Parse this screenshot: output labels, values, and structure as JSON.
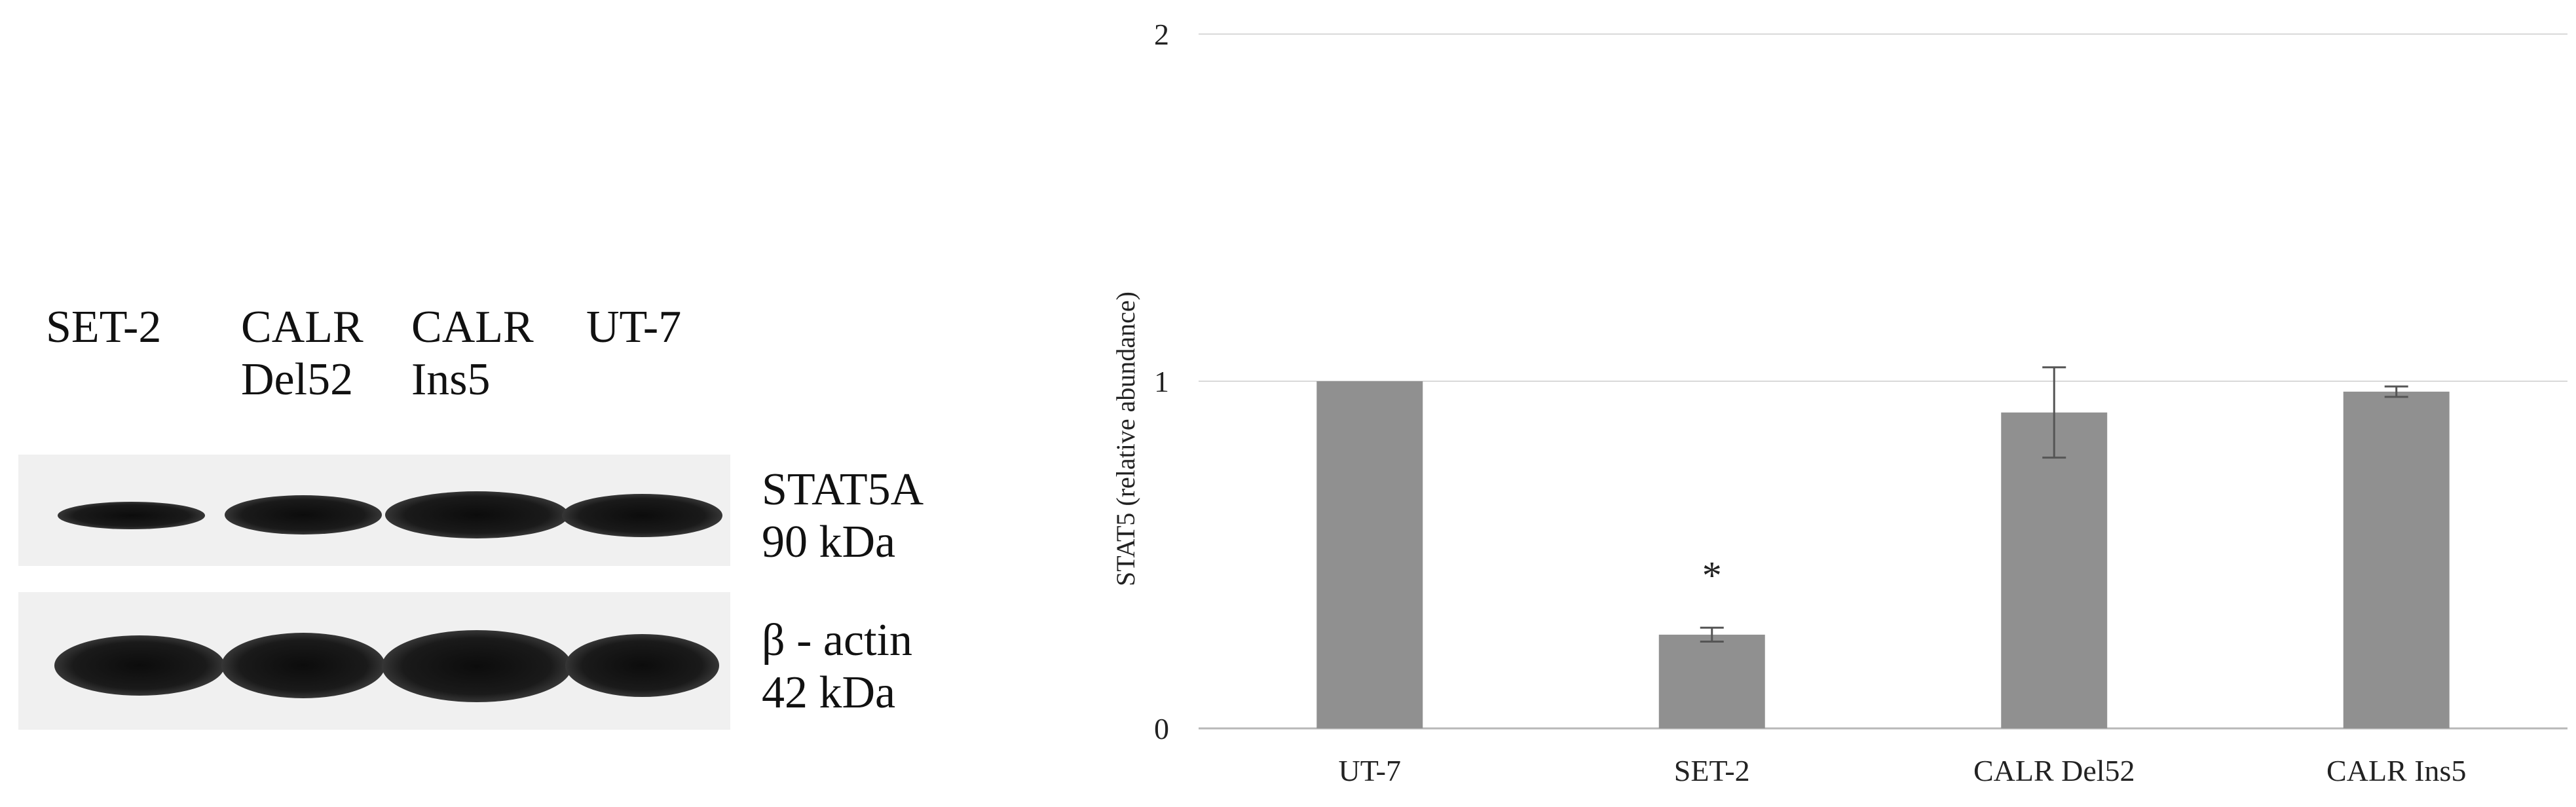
{
  "blot": {
    "lanes": [
      {
        "line1": "SET-2",
        "line2": ""
      },
      {
        "line1": "CALR",
        "line2": "Del52"
      },
      {
        "line1": "CALR",
        "line2": "Ins5"
      },
      {
        "line1": "UT-7",
        "line2": ""
      }
    ],
    "rows": [
      {
        "name": "STAT5A",
        "size": "90 kDa"
      },
      {
        "name": "β - actin",
        "size": "42 kDa"
      }
    ]
  },
  "chart_data": {
    "type": "bar",
    "categories": [
      "UT-7",
      "SET-2",
      "CALR Del52",
      "CALR Ins5"
    ],
    "values": [
      1.0,
      0.27,
      0.91,
      0.97
    ],
    "errors": [
      0.0,
      0.02,
      0.13,
      0.015
    ],
    "annotations": [
      "",
      "*",
      "",
      ""
    ],
    "ylabel": "STAT5 (relative abundance)",
    "xlabel": "",
    "ylim": [
      0,
      2
    ],
    "yticks": [
      "0",
      "1",
      "2"
    ],
    "grid": true,
    "bar_color": "#909090"
  }
}
